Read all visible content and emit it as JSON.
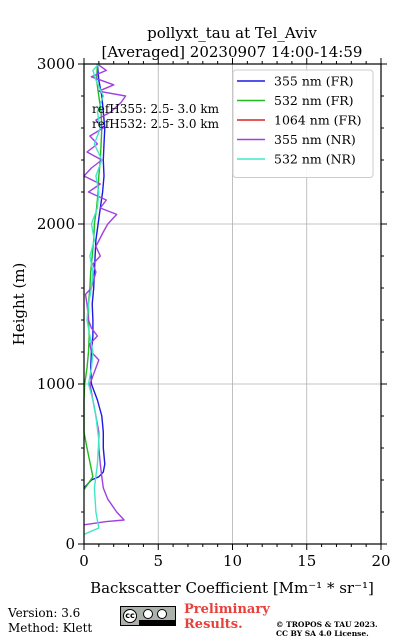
{
  "chart_data": {
    "type": "line",
    "title": "pollyxt_tau at Tel_Aviv",
    "subtitle": "[Averaged] 20230907 14:00-14:59",
    "xlabel": "Backscatter Coefficient [Mm⁻¹ * sr⁻¹]",
    "ylabel": "Height (m)",
    "xlim": [
      0,
      20
    ],
    "ylim": [
      0,
      3000
    ],
    "xticks": [
      0,
      5,
      10,
      15,
      20
    ],
    "yticks": [
      0,
      1000,
      2000,
      3000
    ],
    "grid": true,
    "legend_position": "top-right",
    "annotations": [
      "refH355:  2.5- 3.0 km",
      "refH532:  2.5- 3.0 km"
    ],
    "series": [
      {
        "name": "355 nm (FR)",
        "color": "#1a1ae6",
        "points": [
          [
            0.0,
            350
          ],
          [
            0.5,
            400
          ],
          [
            1.0,
            420
          ],
          [
            1.3,
            450
          ],
          [
            1.4,
            500
          ],
          [
            1.3,
            600
          ],
          [
            1.3,
            700
          ],
          [
            1.2,
            800
          ],
          [
            0.9,
            900
          ],
          [
            0.5,
            1000
          ],
          [
            0.45,
            1100
          ],
          [
            0.5,
            1200
          ],
          [
            0.6,
            1300
          ],
          [
            0.6,
            1400
          ],
          [
            0.55,
            1500
          ],
          [
            0.65,
            1600
          ],
          [
            0.7,
            1700
          ],
          [
            0.75,
            1800
          ],
          [
            0.8,
            1900
          ],
          [
            0.95,
            2000
          ],
          [
            1.1,
            2100
          ],
          [
            1.25,
            2200
          ],
          [
            1.35,
            2300
          ],
          [
            1.3,
            2400
          ],
          [
            1.35,
            2500
          ],
          [
            1.4,
            2600
          ],
          [
            1.3,
            2700
          ],
          [
            1.2,
            2800
          ],
          [
            1.0,
            2900
          ],
          [
            0.9,
            3000
          ]
        ]
      },
      {
        "name": "532 nm (FR)",
        "color": "#22bb22",
        "points": [
          [
            0.0,
            340
          ],
          [
            0.3,
            380
          ],
          [
            0.6,
            420
          ],
          [
            0.2,
            600
          ],
          [
            0.0,
            700
          ],
          [
            0.0,
            900
          ],
          [
            0.05,
            1000
          ],
          [
            0.2,
            1100
          ],
          [
            0.3,
            1200
          ],
          [
            0.35,
            1300
          ],
          [
            0.3,
            1400
          ],
          [
            0.3,
            1500
          ],
          [
            0.4,
            1600
          ],
          [
            0.45,
            1700
          ],
          [
            0.55,
            1800
          ],
          [
            0.65,
            1900
          ],
          [
            0.7,
            2000
          ],
          [
            0.85,
            2100
          ],
          [
            0.95,
            2200
          ],
          [
            1.0,
            2300
          ],
          [
            1.1,
            2400
          ],
          [
            1.15,
            2500
          ],
          [
            1.2,
            2600
          ],
          [
            1.15,
            2700
          ],
          [
            1.0,
            2800
          ],
          [
            0.85,
            2900
          ],
          [
            0.9,
            3000
          ]
        ]
      },
      {
        "name": "1064 nm (FR)",
        "color": "#dd2222",
        "points": []
      },
      {
        "name": "355 nm (NR)",
        "color": "#a040e0",
        "points": [
          [
            0.0,
            120
          ],
          [
            1.5,
            140
          ],
          [
            2.7,
            150
          ],
          [
            2.2,
            200
          ],
          [
            1.6,
            280
          ],
          [
            1.3,
            350
          ],
          [
            1.2,
            420
          ],
          [
            1.1,
            500
          ],
          [
            1.0,
            600
          ],
          [
            1.0,
            700
          ],
          [
            0.8,
            800
          ],
          [
            0.6,
            900
          ],
          [
            0.4,
            1000
          ],
          [
            0.6,
            1050
          ],
          [
            1.0,
            1150
          ],
          [
            0.5,
            1200
          ],
          [
            0.4,
            1250
          ],
          [
            0.9,
            1300
          ],
          [
            0.5,
            1350
          ],
          [
            0.3,
            1400
          ],
          [
            0.2,
            1500
          ],
          [
            0.1,
            1560
          ],
          [
            0.5,
            1600
          ],
          [
            0.8,
            1700
          ],
          [
            0.6,
            1750
          ],
          [
            1.1,
            1800
          ],
          [
            0.8,
            1860
          ],
          [
            1.3,
            1950
          ],
          [
            1.6,
            2000
          ],
          [
            2.2,
            2060
          ],
          [
            1.1,
            2100
          ],
          [
            1.5,
            2150
          ],
          [
            0.3,
            2200
          ],
          [
            1.1,
            2250
          ],
          [
            0.0,
            2300
          ],
          [
            0.5,
            2350
          ],
          [
            1.2,
            2400
          ],
          [
            0.2,
            2450
          ],
          [
            0.9,
            2500
          ],
          [
            0.4,
            2550
          ],
          [
            1.3,
            2600
          ],
          [
            0.8,
            2650
          ],
          [
            1.8,
            2700
          ],
          [
            2.5,
            2760
          ],
          [
            2.8,
            2800
          ],
          [
            1.0,
            2830
          ],
          [
            2.0,
            2870
          ],
          [
            0.5,
            2920
          ],
          [
            1.5,
            2960
          ],
          [
            0.9,
            3000
          ]
        ]
      },
      {
        "name": "532 nm (NR)",
        "color": "#3ee8c4",
        "points": [
          [
            0.0,
            60
          ],
          [
            0.5,
            80
          ],
          [
            1.0,
            100
          ],
          [
            0.8,
            200
          ],
          [
            0.7,
            350
          ],
          [
            0.9,
            500
          ],
          [
            1.0,
            650
          ],
          [
            0.8,
            800
          ],
          [
            0.6,
            900
          ],
          [
            0.3,
            1000
          ],
          [
            0.5,
            1100
          ],
          [
            0.6,
            1200
          ],
          [
            0.4,
            1300
          ],
          [
            0.2,
            1400
          ],
          [
            0.3,
            1500
          ],
          [
            0.5,
            1600
          ],
          [
            0.6,
            1700
          ],
          [
            0.4,
            1800
          ],
          [
            0.7,
            1900
          ],
          [
            0.5,
            2000
          ],
          [
            0.9,
            2100
          ],
          [
            1.0,
            2200
          ],
          [
            0.8,
            2300
          ],
          [
            1.2,
            2400
          ],
          [
            0.7,
            2500
          ],
          [
            1.1,
            2600
          ],
          [
            0.9,
            2700
          ],
          [
            1.3,
            2800
          ],
          [
            0.8,
            2900
          ],
          [
            0.6,
            2960
          ],
          [
            1.0,
            3000
          ]
        ]
      }
    ]
  },
  "footer": {
    "version": "Version: 3.6",
    "method": "Method: Klett",
    "cc_icon": "cc-by-sa-badge",
    "preliminary_line1": "Preliminary",
    "preliminary_line2": "Results.",
    "copyright_line1": "© TROPOS & TAU 2023.",
    "copyright_line2": "CC BY SA 4.0 License."
  }
}
